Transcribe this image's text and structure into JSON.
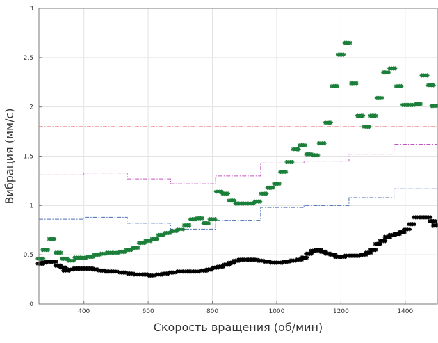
{
  "chart_data": {
    "type": "scatter",
    "title": "",
    "xlabel": "Скорость вращения (об/мин)",
    "ylabel": "Вибрация (мм/с)",
    "xlim": [
      260,
      1500
    ],
    "ylim": [
      0,
      3
    ],
    "x_ticks": [
      400,
      600,
      800,
      1000,
      1200,
      1400
    ],
    "x_tick_labels": [
      "400",
      "600",
      "800",
      "1000",
      "1200",
      "1400"
    ],
    "y_ticks": [
      0,
      0.5,
      1,
      1.5,
      2,
      2.5,
      3
    ],
    "y_tick_labels": [
      "0",
      "0.5",
      "1",
      "1.5",
      "2",
      "2.5",
      "3"
    ],
    "grid": true,
    "legend": "none",
    "series": [
      {
        "mode": "markers",
        "marker": "star",
        "color": "#000000",
        "points": [
          [
            265,
            0.41
          ],
          [
            275,
            0.42
          ],
          [
            290,
            0.43
          ],
          [
            305,
            0.43
          ],
          [
            320,
            0.39
          ],
          [
            335,
            0.37
          ],
          [
            345,
            0.34
          ],
          [
            360,
            0.35
          ],
          [
            375,
            0.36
          ],
          [
            390,
            0.36
          ],
          [
            405,
            0.36
          ],
          [
            420,
            0.36
          ],
          [
            435,
            0.35
          ],
          [
            455,
            0.34
          ],
          [
            475,
            0.33
          ],
          [
            495,
            0.33
          ],
          [
            520,
            0.32
          ],
          [
            545,
            0.31
          ],
          [
            565,
            0.3
          ],
          [
            590,
            0.3
          ],
          [
            610,
            0.29
          ],
          [
            635,
            0.3
          ],
          [
            655,
            0.31
          ],
          [
            675,
            0.32
          ],
          [
            700,
            0.33
          ],
          [
            725,
            0.33
          ],
          [
            750,
            0.33
          ],
          [
            775,
            0.34
          ],
          [
            790,
            0.35
          ],
          [
            810,
            0.37
          ],
          [
            825,
            0.38
          ],
          [
            845,
            0.4
          ],
          [
            860,
            0.42
          ],
          [
            875,
            0.44
          ],
          [
            890,
            0.45
          ],
          [
            910,
            0.45
          ],
          [
            930,
            0.45
          ],
          [
            950,
            0.44
          ],
          [
            970,
            0.43
          ],
          [
            990,
            0.42
          ],
          [
            1010,
            0.42
          ],
          [
            1030,
            0.43
          ],
          [
            1050,
            0.44
          ],
          [
            1070,
            0.45
          ],
          [
            1085,
            0.47
          ],
          [
            1100,
            0.51
          ],
          [
            1115,
            0.54
          ],
          [
            1130,
            0.55
          ],
          [
            1145,
            0.53
          ],
          [
            1160,
            0.51
          ],
          [
            1175,
            0.5
          ],
          [
            1190,
            0.48
          ],
          [
            1205,
            0.48
          ],
          [
            1220,
            0.49
          ],
          [
            1235,
            0.49
          ],
          [
            1250,
            0.49
          ],
          [
            1270,
            0.5
          ],
          [
            1285,
            0.52
          ],
          [
            1300,
            0.55
          ],
          [
            1315,
            0.61
          ],
          [
            1330,
            0.64
          ],
          [
            1345,
            0.68
          ],
          [
            1360,
            0.7
          ],
          [
            1375,
            0.71
          ],
          [
            1390,
            0.73
          ],
          [
            1405,
            0.76
          ],
          [
            1420,
            0.81
          ],
          [
            1435,
            0.88
          ],
          [
            1455,
            0.88
          ],
          [
            1470,
            0.88
          ],
          [
            1485,
            0.84
          ],
          [
            1495,
            0.8
          ]
        ]
      },
      {
        "mode": "markers",
        "marker": "star",
        "color": "#1b7f3a",
        "points": [
          [
            265,
            0.46
          ],
          [
            280,
            0.55
          ],
          [
            300,
            0.66
          ],
          [
            320,
            0.52
          ],
          [
            340,
            0.46
          ],
          [
            360,
            0.44
          ],
          [
            380,
            0.47
          ],
          [
            400,
            0.47
          ],
          [
            420,
            0.48
          ],
          [
            440,
            0.5
          ],
          [
            460,
            0.51
          ],
          [
            480,
            0.52
          ],
          [
            500,
            0.52
          ],
          [
            520,
            0.53
          ],
          [
            540,
            0.55
          ],
          [
            560,
            0.57
          ],
          [
            580,
            0.62
          ],
          [
            600,
            0.64
          ],
          [
            620,
            0.66
          ],
          [
            640,
            0.7
          ],
          [
            660,
            0.72
          ],
          [
            680,
            0.74
          ],
          [
            700,
            0.76
          ],
          [
            720,
            0.8
          ],
          [
            740,
            0.86
          ],
          [
            760,
            0.87
          ],
          [
            780,
            0.82
          ],
          [
            800,
            0.86
          ],
          [
            820,
            1.14
          ],
          [
            840,
            1.12
          ],
          [
            860,
            1.05
          ],
          [
            880,
            1.02
          ],
          [
            900,
            1.02
          ],
          [
            920,
            1.02
          ],
          [
            940,
            1.04
          ],
          [
            960,
            1.12
          ],
          [
            980,
            1.18
          ],
          [
            1000,
            1.22
          ],
          [
            1020,
            1.34
          ],
          [
            1040,
            1.44
          ],
          [
            1060,
            1.57
          ],
          [
            1080,
            1.61
          ],
          [
            1100,
            1.52
          ],
          [
            1120,
            1.51
          ],
          [
            1140,
            1.63
          ],
          [
            1160,
            1.84
          ],
          [
            1180,
            2.21
          ],
          [
            1200,
            2.53
          ],
          [
            1220,
            2.65
          ],
          [
            1240,
            2.24
          ],
          [
            1260,
            1.91
          ],
          [
            1280,
            1.8
          ],
          [
            1300,
            1.91
          ],
          [
            1320,
            2.09
          ],
          [
            1340,
            2.35
          ],
          [
            1360,
            2.39
          ],
          [
            1380,
            2.21
          ],
          [
            1400,
            2.02
          ],
          [
            1420,
            2.02
          ],
          [
            1440,
            2.03
          ],
          [
            1460,
            2.32
          ],
          [
            1480,
            2.22
          ],
          [
            1490,
            2.01
          ]
        ]
      },
      {
        "mode": "step",
        "color": "#e05a5a",
        "dash": "dashdot",
        "points": [
          [
            260,
            1.8
          ],
          [
            1500,
            1.8
          ]
        ]
      },
      {
        "mode": "step",
        "color": "#c055c0",
        "dash": "dashdot",
        "points": [
          [
            260,
            1.31
          ],
          [
            400,
            1.31
          ],
          [
            400,
            1.33
          ],
          [
            535,
            1.33
          ],
          [
            535,
            1.27
          ],
          [
            670,
            1.27
          ],
          [
            670,
            1.22
          ],
          [
            810,
            1.22
          ],
          [
            810,
            1.3
          ],
          [
            950,
            1.3
          ],
          [
            950,
            1.43
          ],
          [
            1085,
            1.43
          ],
          [
            1085,
            1.45
          ],
          [
            1225,
            1.45
          ],
          [
            1225,
            1.52
          ],
          [
            1365,
            1.52
          ],
          [
            1365,
            1.62
          ],
          [
            1500,
            1.62
          ],
          [
            1500,
            1.8
          ]
        ]
      },
      {
        "mode": "step",
        "color": "#4a6fb3",
        "dash": "dashdot",
        "points": [
          [
            260,
            0.86
          ],
          [
            400,
            0.86
          ],
          [
            400,
            0.88
          ],
          [
            535,
            0.88
          ],
          [
            535,
            0.82
          ],
          [
            670,
            0.82
          ],
          [
            670,
            0.76
          ],
          [
            810,
            0.76
          ],
          [
            810,
            0.85
          ],
          [
            950,
            0.85
          ],
          [
            950,
            0.98
          ],
          [
            1085,
            0.98
          ],
          [
            1085,
            1.0
          ],
          [
            1225,
            1.0
          ],
          [
            1225,
            1.08
          ],
          [
            1365,
            1.08
          ],
          [
            1365,
            1.17
          ],
          [
            1500,
            1.17
          ],
          [
            1500,
            1.34
          ]
        ]
      }
    ]
  }
}
